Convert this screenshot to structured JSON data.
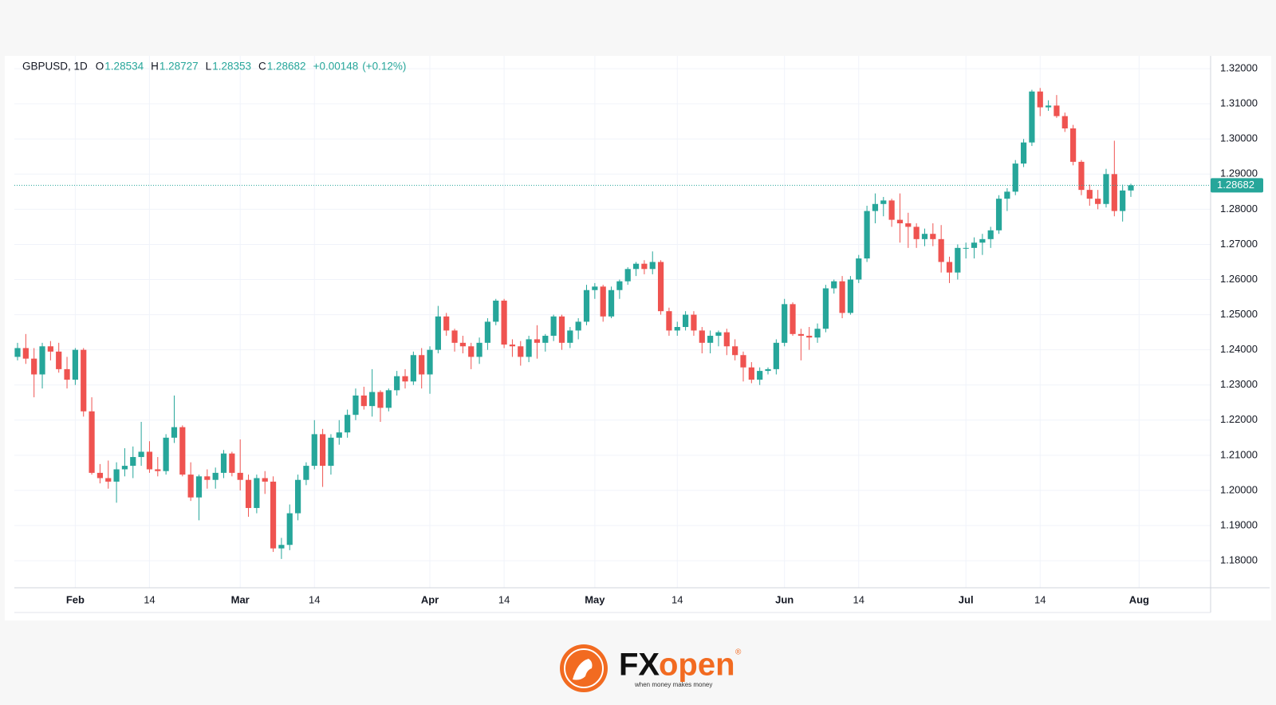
{
  "chart_data": {
    "type": "candlestick",
    "symbol": "GBPUSD, 1D",
    "ohlc_labels": [
      "O",
      "H",
      "L",
      "C"
    ],
    "change": "+0.00148",
    "change_pct": "(+0.12%)",
    "up_color": "#26a69a",
    "down_color": "#ef5350",
    "grid": true,
    "x": [
      "01-23",
      "01-24",
      "01-25",
      "01-26",
      "01-27",
      "01-30",
      "01-31",
      "02-01",
      "02-02",
      "02-03",
      "02-06",
      "02-07",
      "02-08",
      "02-09",
      "02-10",
      "02-13",
      "02-14",
      "02-15",
      "02-16",
      "02-17",
      "02-20",
      "02-21",
      "02-22",
      "02-23",
      "02-24",
      "02-27",
      "02-28",
      "03-01",
      "03-02",
      "03-03",
      "03-06",
      "03-07",
      "03-08",
      "03-09",
      "03-10",
      "03-13",
      "03-14",
      "03-15",
      "03-16",
      "03-17",
      "03-20",
      "03-21",
      "03-22",
      "03-23",
      "03-24",
      "03-27",
      "03-28",
      "03-29",
      "03-30",
      "03-31",
      "04-03",
      "04-04",
      "04-05",
      "04-06",
      "04-07",
      "04-10",
      "04-11",
      "04-12",
      "04-13",
      "04-14",
      "04-17",
      "04-18",
      "04-19",
      "04-20",
      "04-21",
      "04-24",
      "04-25",
      "04-26",
      "04-27",
      "04-28",
      "05-01",
      "05-02",
      "05-03",
      "05-04",
      "05-05",
      "05-08",
      "05-09",
      "05-10",
      "05-11",
      "05-12",
      "05-15",
      "05-16",
      "05-17",
      "05-18",
      "05-19",
      "05-22",
      "05-23",
      "05-24",
      "05-25",
      "05-26",
      "05-29",
      "05-30",
      "05-31",
      "06-01",
      "06-02",
      "06-05",
      "06-06",
      "06-07",
      "06-08",
      "06-09",
      "06-12",
      "06-13",
      "06-14",
      "06-15",
      "06-16",
      "06-19",
      "06-20",
      "06-21",
      "06-22",
      "06-23",
      "06-26",
      "06-27",
      "06-28",
      "06-29",
      "06-30",
      "07-03",
      "07-04",
      "07-05",
      "07-06",
      "07-07",
      "07-10",
      "07-11",
      "07-12",
      "07-13",
      "07-14",
      "07-17",
      "07-18",
      "07-19",
      "07-20",
      "07-21",
      "07-24",
      "07-25",
      "07-26",
      "07-27",
      "07-28",
      "07-31"
    ],
    "open": [
      1.238,
      1.2405,
      1.2375,
      1.233,
      1.241,
      1.2395,
      1.2345,
      1.2315,
      1.24,
      1.2225,
      1.205,
      1.2035,
      1.2025,
      1.206,
      1.207,
      1.2095,
      1.211,
      1.206,
      1.2055,
      1.215,
      1.218,
      1.2045,
      1.198,
      1.204,
      1.203,
      1.205,
      1.2105,
      1.205,
      1.203,
      1.195,
      1.2035,
      1.2025,
      1.1835,
      1.1845,
      1.1935,
      1.203,
      1.207,
      1.216,
      1.207,
      1.215,
      1.2165,
      1.2215,
      1.227,
      1.224,
      1.228,
      1.2235,
      1.2285,
      1.2325,
      1.231,
      1.2385,
      1.233,
      1.24,
      1.2495,
      1.2455,
      1.242,
      1.241,
      1.238,
      1.242,
      1.248,
      1.254,
      1.2415,
      1.241,
      1.238,
      1.243,
      1.242,
      1.244,
      1.2495,
      1.242,
      1.2455,
      1.248,
      1.257,
      1.258,
      1.2495,
      1.257,
      1.2595,
      1.263,
      1.2645,
      1.263,
      1.265,
      1.251,
      1.2455,
      1.2465,
      1.25,
      1.2455,
      1.242,
      1.244,
      1.245,
      1.241,
      1.2385,
      1.235,
      1.2315,
      1.234,
      1.2345,
      1.242,
      1.253,
      1.2445,
      1.244,
      1.2435,
      1.246,
      1.2575,
      1.2595,
      1.2505,
      1.26,
      1.266,
      1.2795,
      1.2815,
      1.2825,
      1.277,
      1.276,
      1.275,
      1.2715,
      1.273,
      1.2715,
      1.265,
      1.262,
      1.269,
      1.269,
      1.2705,
      1.2715,
      1.274,
      1.283,
      1.285,
      1.293,
      1.299,
      1.3135,
      1.309,
      1.3095,
      1.3065,
      1.303,
      1.2935,
      1.2855,
      1.283,
      1.2815,
      1.29,
      1.2795,
      1.28534
    ],
    "high": [
      1.242,
      1.2445,
      1.2405,
      1.242,
      1.2425,
      1.242,
      1.238,
      1.2405,
      1.2405,
      1.2265,
      1.2075,
      1.2085,
      1.208,
      1.212,
      1.2125,
      1.2195,
      1.214,
      1.2095,
      1.216,
      1.227,
      1.2185,
      1.208,
      1.2045,
      1.206,
      1.2065,
      1.2115,
      1.211,
      1.2145,
      1.2045,
      1.2045,
      1.2055,
      1.204,
      1.1865,
      1.196,
      1.2045,
      1.208,
      1.22,
      1.2175,
      1.216,
      1.22,
      1.223,
      1.229,
      1.2295,
      1.2345,
      1.2285,
      1.229,
      1.234,
      1.2345,
      1.2395,
      1.2405,
      1.241,
      1.2525,
      1.2505,
      1.246,
      1.244,
      1.242,
      1.2435,
      1.249,
      1.2545,
      1.2545,
      1.243,
      1.2425,
      1.244,
      1.247,
      1.2445,
      1.25,
      1.25,
      1.2465,
      1.249,
      1.2585,
      1.259,
      1.2585,
      1.258,
      1.26,
      1.2635,
      1.265,
      1.2655,
      1.268,
      1.2655,
      1.252,
      1.248,
      1.251,
      1.251,
      1.2465,
      1.2455,
      1.2455,
      1.246,
      1.243,
      1.2395,
      1.2365,
      1.235,
      1.235,
      1.243,
      1.2545,
      1.2535,
      1.246,
      1.2465,
      1.2475,
      1.2585,
      1.26,
      1.261,
      1.261,
      1.267,
      1.281,
      1.2845,
      1.2835,
      1.283,
      1.2845,
      1.279,
      1.276,
      1.2745,
      1.276,
      1.2755,
      1.2665,
      1.27,
      1.2705,
      1.272,
      1.273,
      1.275,
      1.284,
      1.286,
      1.294,
      1.3,
      1.314,
      1.3145,
      1.311,
      1.3125,
      1.3075,
      1.304,
      1.294,
      1.287,
      1.2855,
      1.2915,
      1.2995,
      1.287,
      1.28727
    ],
    "low": [
      1.237,
      1.236,
      1.2265,
      1.229,
      1.237,
      1.2335,
      1.229,
      1.23,
      1.221,
      1.2045,
      1.202,
      1.2005,
      1.1965,
      1.204,
      1.2035,
      1.207,
      1.205,
      1.204,
      1.2045,
      1.2135,
      1.204,
      1.197,
      1.1915,
      1.2005,
      1.2005,
      1.2035,
      1.204,
      1.2,
      1.1925,
      1.1935,
      1.199,
      1.1825,
      1.1805,
      1.183,
      1.1915,
      1.2015,
      1.206,
      1.201,
      1.2045,
      1.213,
      1.215,
      1.22,
      1.223,
      1.221,
      1.2195,
      1.2225,
      1.227,
      1.229,
      1.23,
      1.229,
      1.2275,
      1.239,
      1.244,
      1.2395,
      1.239,
      1.2345,
      1.236,
      1.24,
      1.247,
      1.2405,
      1.238,
      1.2355,
      1.2365,
      1.2375,
      1.2395,
      1.2425,
      1.24,
      1.2405,
      1.243,
      1.247,
      1.2545,
      1.248,
      1.249,
      1.2545,
      1.2585,
      1.261,
      1.2615,
      1.2615,
      1.25,
      1.244,
      1.244,
      1.2455,
      1.244,
      1.239,
      1.239,
      1.241,
      1.2385,
      1.237,
      1.231,
      1.2305,
      1.23,
      1.233,
      1.233,
      1.241,
      1.244,
      1.237,
      1.24,
      1.242,
      1.245,
      1.256,
      1.249,
      1.25,
      1.259,
      1.265,
      1.276,
      1.278,
      1.275,
      1.2705,
      1.269,
      1.269,
      1.2695,
      1.2695,
      1.262,
      1.259,
      1.26,
      1.266,
      1.266,
      1.267,
      1.269,
      1.273,
      1.2795,
      1.284,
      1.292,
      1.298,
      1.3065,
      1.308,
      1.306,
      1.302,
      1.2925,
      1.284,
      1.281,
      1.28,
      1.2805,
      1.278,
      1.2765,
      1.28353
    ],
    "close": [
      1.2405,
      1.2375,
      1.233,
      1.241,
      1.2395,
      1.2345,
      1.2315,
      1.24,
      1.2225,
      1.205,
      1.2035,
      1.2025,
      1.206,
      1.207,
      1.2095,
      1.211,
      1.206,
      1.2055,
      1.215,
      1.218,
      1.2045,
      1.198,
      1.204,
      1.203,
      1.205,
      1.2105,
      1.205,
      1.203,
      1.195,
      1.2035,
      1.2025,
      1.1835,
      1.1845,
      1.1935,
      1.203,
      1.207,
      1.216,
      1.207,
      1.215,
      1.2165,
      1.2215,
      1.227,
      1.224,
      1.228,
      1.2235,
      1.2285,
      1.2325,
      1.231,
      1.2385,
      1.233,
      1.24,
      1.2495,
      1.2455,
      1.242,
      1.241,
      1.238,
      1.242,
      1.248,
      1.254,
      1.2415,
      1.241,
      1.238,
      1.243,
      1.242,
      1.244,
      1.2495,
      1.242,
      1.2455,
      1.248,
      1.257,
      1.258,
      1.2495,
      1.257,
      1.2595,
      1.263,
      1.2645,
      1.263,
      1.265,
      1.251,
      1.2455,
      1.2465,
      1.25,
      1.2455,
      1.242,
      1.244,
      1.245,
      1.241,
      1.2385,
      1.235,
      1.2315,
      1.234,
      1.2345,
      1.242,
      1.253,
      1.2445,
      1.244,
      1.2435,
      1.246,
      1.2575,
      1.2595,
      1.2505,
      1.26,
      1.266,
      1.2795,
      1.2815,
      1.2825,
      1.277,
      1.276,
      1.275,
      1.2715,
      1.273,
      1.2715,
      1.265,
      1.262,
      1.269,
      1.269,
      1.2705,
      1.2715,
      1.274,
      1.283,
      1.285,
      1.293,
      1.299,
      1.3135,
      1.309,
      1.3095,
      1.3065,
      1.303,
      1.2935,
      1.2855,
      1.283,
      1.2815,
      1.29,
      1.2795,
      1.28534,
      1.28682
    ],
    "ylim": [
      1.1723,
      1.3232
    ],
    "yticks": [
      {
        "value": 1.18,
        "label": "1.18000"
      },
      {
        "value": 1.19,
        "label": "1.19000"
      },
      {
        "value": 1.2,
        "label": "1.20000"
      },
      {
        "value": 1.21,
        "label": "1.21000"
      },
      {
        "value": 1.22,
        "label": "1.22000"
      },
      {
        "value": 1.23,
        "label": "1.23000"
      },
      {
        "value": 1.24,
        "label": "1.24000"
      },
      {
        "value": 1.25,
        "label": "1.25000"
      },
      {
        "value": 1.26,
        "label": "1.26000"
      },
      {
        "value": 1.27,
        "label": "1.27000"
      },
      {
        "value": 1.28,
        "label": "1.28000"
      },
      {
        "value": 1.29,
        "label": "1.29000"
      },
      {
        "value": 1.3,
        "label": "1.30000"
      },
      {
        "value": 1.31,
        "label": "1.31000"
      },
      {
        "value": 1.32,
        "label": "1.32000"
      }
    ],
    "xticks": [
      {
        "value": "02-01",
        "label": "Feb"
      },
      {
        "value": "02-14",
        "label": "14"
      },
      {
        "value": "03-01",
        "label": "Mar"
      },
      {
        "value": "03-14",
        "label": "14"
      },
      {
        "value": "04-03",
        "label": "Apr"
      },
      {
        "value": "04-14",
        "label": "14"
      },
      {
        "value": "05-01",
        "label": "May"
      },
      {
        "value": "05-14",
        "label": "14"
      },
      {
        "value": "06-01",
        "label": "Jun"
      },
      {
        "value": "06-14",
        "label": "14"
      },
      {
        "value": "07-03",
        "label": "Jul"
      },
      {
        "value": "07-14",
        "label": "14"
      },
      {
        "value": "08-01",
        "label": "Aug"
      }
    ]
  },
  "logo": {
    "prefix": "FX",
    "suffix": "open",
    "tagline": "when money makes money",
    "mark": "®"
  }
}
